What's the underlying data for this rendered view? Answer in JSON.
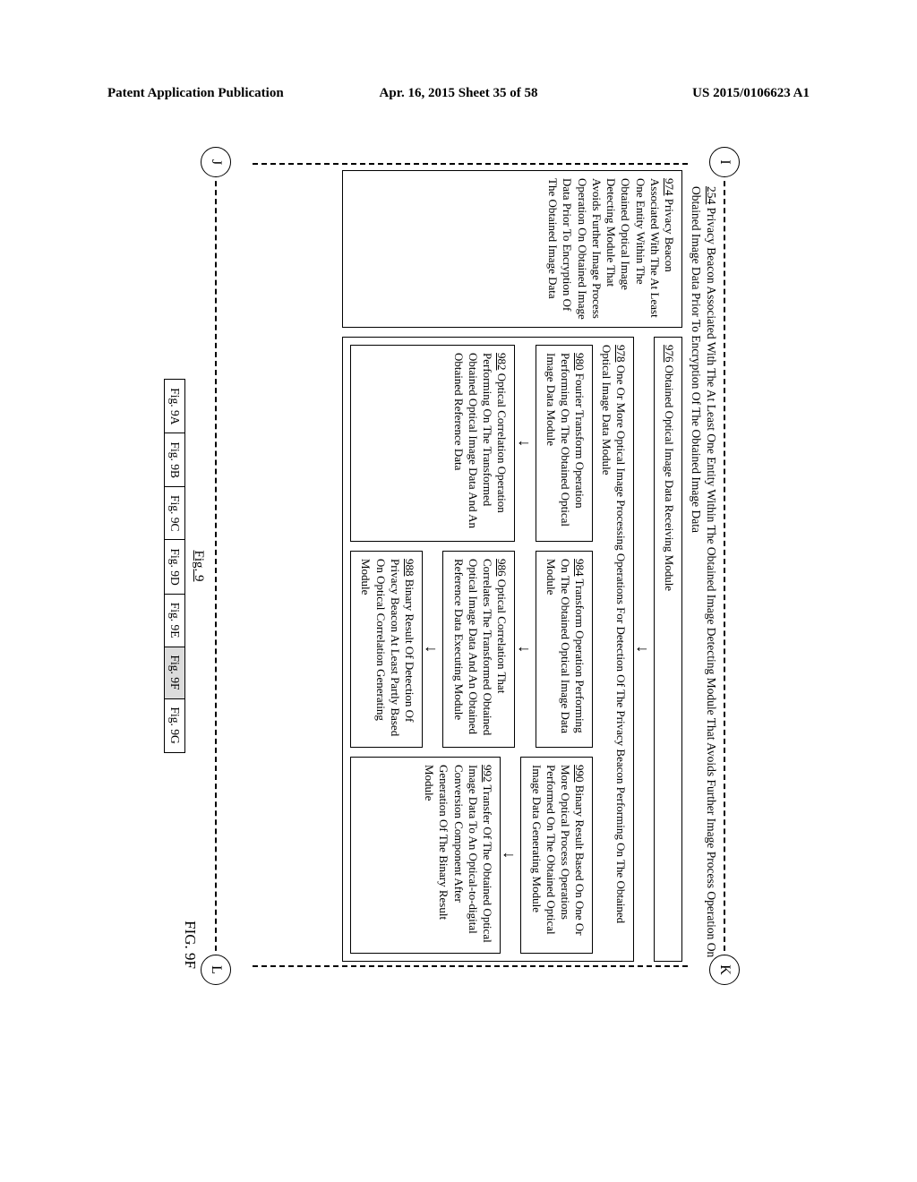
{
  "header": {
    "left": "Patent Application Publication",
    "center": "Apr. 16, 2015  Sheet 35 of 58",
    "right": "US 2015/0106623 A1"
  },
  "connectors": {
    "I": "I",
    "J": "J",
    "K": "K",
    "L": "L"
  },
  "box254": {
    "num": "254",
    "text": " Privacy Beacon Associated With The At Least One Entity Within The Obtained Image Detecting Module That Avoids Further Image Process Operation On Obtained Image Data Prior To Encryption Of The Obtained Image Data"
  },
  "box974": {
    "num": "974",
    "text": " Privacy Beacon Associated With The At Least One Entity Within The Obtained Optical Image Detecting Module That Avoids Further Image Process Operation On Obtained Image Data Prior To Encryption Of The Obtained Image Data"
  },
  "box976": {
    "num": "976",
    "text": " Obtained Optical Image Data Receiving Module"
  },
  "box978": {
    "num": "978",
    "text": " One Or More Optical Image Processing Operations For Detection Of The Privacy Beacon Performing On The Obtained Optical Image Data Module"
  },
  "box980": {
    "num": "980",
    "text": " Fourier Transform Operation Performing On The Obtained Optical Image Data Module"
  },
  "box982": {
    "num": "982",
    "text": " Optical Correlation Operation Performing On The Transformed Obtained Optical Image Data And An Obtained Reference Data"
  },
  "box984": {
    "num": "984",
    "text": " Transform Operation Performing On The Obtained Optical Image Data Module"
  },
  "box986": {
    "num": "986",
    "text": " Optical Correlation That Correlates The Transformed Obtained Optical Image Data And An Obtained Reference Data Executing Module"
  },
  "box988": {
    "num": "988",
    "text": " Binary Result Of Detection Of Privacy Beacon At Least Partly Based On Optical Correlation Generating Module"
  },
  "box990": {
    "num": "990",
    "text": " Binary Result Based On One Or More Optical Process Operations Performed On The Obtained Optical Image Data Generating Module"
  },
  "box992": {
    "num": "992",
    "text": " Transfer Of The Obtained Optical Image Data To An Optical-to-digital Conversion Component After Generation Of The Binary Result Module"
  },
  "nav": {
    "caption": "Fig. 9",
    "tabs": [
      "Fig. 9A",
      "Fig. 9B",
      "Fig. 9C",
      "Fig. 9D",
      "Fig. 9E",
      "Fig. 9F",
      "Fig. 9G"
    ],
    "active_index": 5
  },
  "figlabel": "FIG. 9F",
  "arrow": "↓"
}
